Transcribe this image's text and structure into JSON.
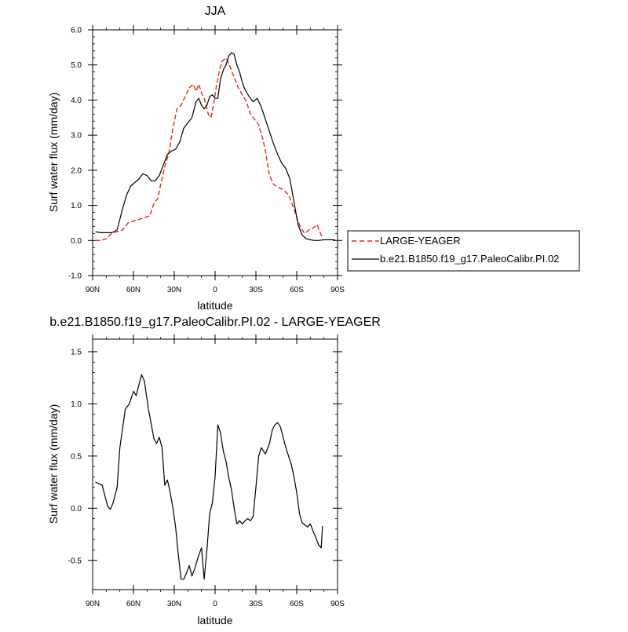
{
  "chart_data": [
    {
      "type": "line",
      "title": "JJA",
      "xlabel": "latitude",
      "ylabel": "Surf water flux (mm/day)",
      "xlim": [
        90,
        -90
      ],
      "ylim": [
        -1.0,
        6.0
      ],
      "x_ticks": [
        90,
        60,
        30,
        0,
        -30,
        -60,
        -90
      ],
      "x_tick_labels": [
        "90N",
        "60N",
        "30N",
        "0",
        "30S",
        "60S",
        "90S"
      ],
      "y_ticks": [
        -1.0,
        0.0,
        1.0,
        2.0,
        3.0,
        4.0,
        5.0,
        6.0
      ],
      "y_tick_labels": [
        "-1.0",
        "0.0",
        "1.0",
        "2.0",
        "3.0",
        "4.0",
        "5.0",
        "6.0"
      ],
      "grid": false,
      "legend": "outside-right",
      "series": [
        {
          "name": "LARGE-YEAGER",
          "color": "#e8231f",
          "dash": "dashed",
          "x": [
            88,
            84,
            80,
            76,
            72,
            68,
            64,
            60,
            56,
            52,
            48,
            45,
            42,
            40,
            37,
            34,
            31,
            28,
            25,
            22,
            19,
            16,
            14,
            12,
            10,
            8,
            5,
            3,
            1,
            -1,
            -3,
            -5,
            -8,
            -10,
            -12,
            -14,
            -17,
            -20,
            -23,
            -26,
            -29,
            -32,
            -35,
            -37,
            -40,
            -43,
            -47,
            -50,
            -54,
            -58,
            -61,
            -63,
            -66,
            -69,
            -72,
            -75,
            -78,
            -79
          ],
          "y": [
            0.0,
            0.0,
            0.05,
            0.2,
            0.25,
            0.3,
            0.5,
            0.55,
            0.6,
            0.65,
            0.7,
            1.05,
            1.2,
            1.6,
            2.1,
            2.5,
            3.2,
            3.75,
            3.85,
            4.1,
            4.35,
            4.45,
            4.25,
            4.45,
            4.2,
            4.05,
            3.6,
            3.5,
            3.9,
            4.4,
            4.8,
            5.1,
            5.2,
            5.05,
            4.85,
            4.65,
            4.35,
            4.15,
            3.95,
            3.6,
            3.45,
            3.3,
            2.9,
            2.55,
            1.85,
            1.6,
            1.5,
            1.45,
            1.3,
            0.9,
            0.55,
            0.35,
            0.2,
            0.3,
            0.35,
            0.45,
            0.15,
            0.1
          ]
        },
        {
          "name": "b.e21.B1850.f19_g17.PaleoCalibr.PI.02",
          "color": "#000000",
          "dash": "solid",
          "x": [
            88,
            84,
            80,
            76,
            72,
            68,
            65,
            62,
            59,
            56,
            53,
            50,
            47,
            44,
            41,
            38,
            35,
            32,
            29,
            26,
            23,
            20,
            17,
            14,
            12,
            10,
            8,
            6,
            4,
            2,
            0,
            -2,
            -4,
            -6,
            -8,
            -10,
            -12,
            -14,
            -16,
            -18,
            -20,
            -22,
            -25,
            -28,
            -31,
            -34,
            -37,
            -40,
            -43,
            -46,
            -49,
            -52,
            -55,
            -58,
            -61,
            -64,
            -67,
            -70,
            -73,
            -76,
            -80,
            -84,
            -88
          ],
          "y": [
            0.25,
            0.22,
            0.22,
            0.22,
            0.3,
            0.9,
            1.3,
            1.55,
            1.65,
            1.75,
            1.9,
            1.85,
            1.7,
            1.7,
            1.85,
            2.15,
            2.45,
            2.55,
            2.6,
            2.8,
            3.2,
            3.35,
            3.5,
            3.95,
            4.05,
            3.85,
            3.75,
            3.85,
            4.1,
            4.15,
            4.05,
            4.05,
            4.6,
            4.85,
            5.0,
            5.25,
            5.35,
            5.3,
            5.0,
            4.8,
            4.5,
            4.3,
            4.1,
            3.95,
            4.05,
            3.8,
            3.45,
            3.1,
            2.75,
            2.45,
            2.2,
            2.05,
            1.75,
            1.1,
            0.45,
            0.15,
            0.05,
            0.02,
            0.0,
            0.0,
            0.02,
            0.02,
            0.02
          ]
        }
      ]
    },
    {
      "type": "line",
      "title": "b.e21.B1850.f19_g17.PaleoCalibr.PI.02 - LARGE-YEAGER",
      "xlabel": "latitude",
      "ylabel": "Surf water flux (mm/day)",
      "xlim": [
        90,
        -90
      ],
      "ylim": [
        -0.78,
        1.62
      ],
      "x_ticks": [
        90,
        60,
        30,
        0,
        -30,
        -60,
        -90
      ],
      "x_tick_labels": [
        "90N",
        "60N",
        "30N",
        "0",
        "30S",
        "60S",
        "90S"
      ],
      "y_ticks": [
        -0.5,
        0.0,
        0.5,
        1.0,
        1.5
      ],
      "y_tick_labels": [
        "-0.5",
        "0.0",
        "0.5",
        "1.0",
        "1.5"
      ],
      "grid": false,
      "series": [
        {
          "color": "#000000",
          "dash": "solid",
          "x": [
            88,
            83,
            79,
            77,
            75,
            72,
            70,
            66,
            63,
            60,
            58,
            56,
            54,
            52,
            49,
            45,
            43,
            41,
            39,
            37,
            35,
            33,
            31,
            29,
            27,
            25,
            23,
            21,
            19,
            17,
            15,
            12,
            10,
            8,
            6,
            4,
            2,
            0,
            -2,
            -4,
            -6,
            -8,
            -10,
            -12,
            -14,
            -16,
            -18,
            -20,
            -22,
            -24,
            -26,
            -28,
            -30,
            -32,
            -34,
            -37,
            -40,
            -42,
            -44,
            -46,
            -48,
            -50,
            -52,
            -54,
            -56,
            -58,
            -60,
            -62,
            -64,
            -66,
            -68,
            -70,
            -72,
            -74,
            -76,
            -78,
            -79
          ],
          "y": [
            0.25,
            0.22,
            0.02,
            -0.01,
            0.05,
            0.2,
            0.58,
            0.95,
            1.0,
            1.12,
            1.08,
            1.18,
            1.28,
            1.22,
            0.95,
            0.67,
            0.62,
            0.68,
            0.58,
            0.22,
            0.27,
            0.15,
            0.0,
            -0.18,
            -0.45,
            -0.68,
            -0.68,
            -0.62,
            -0.55,
            -0.65,
            -0.58,
            -0.45,
            -0.38,
            -0.68,
            -0.4,
            -0.05,
            0.05,
            0.3,
            0.8,
            0.72,
            0.55,
            0.45,
            0.3,
            0.18,
            0.0,
            -0.15,
            -0.12,
            -0.15,
            -0.12,
            -0.1,
            -0.12,
            -0.08,
            0.2,
            0.5,
            0.58,
            0.52,
            0.62,
            0.75,
            0.8,
            0.82,
            0.78,
            0.68,
            0.58,
            0.5,
            0.42,
            0.3,
            0.15,
            -0.05,
            -0.14,
            -0.16,
            -0.18,
            -0.15,
            -0.22,
            -0.28,
            -0.35,
            -0.38,
            -0.17
          ]
        }
      ]
    }
  ]
}
